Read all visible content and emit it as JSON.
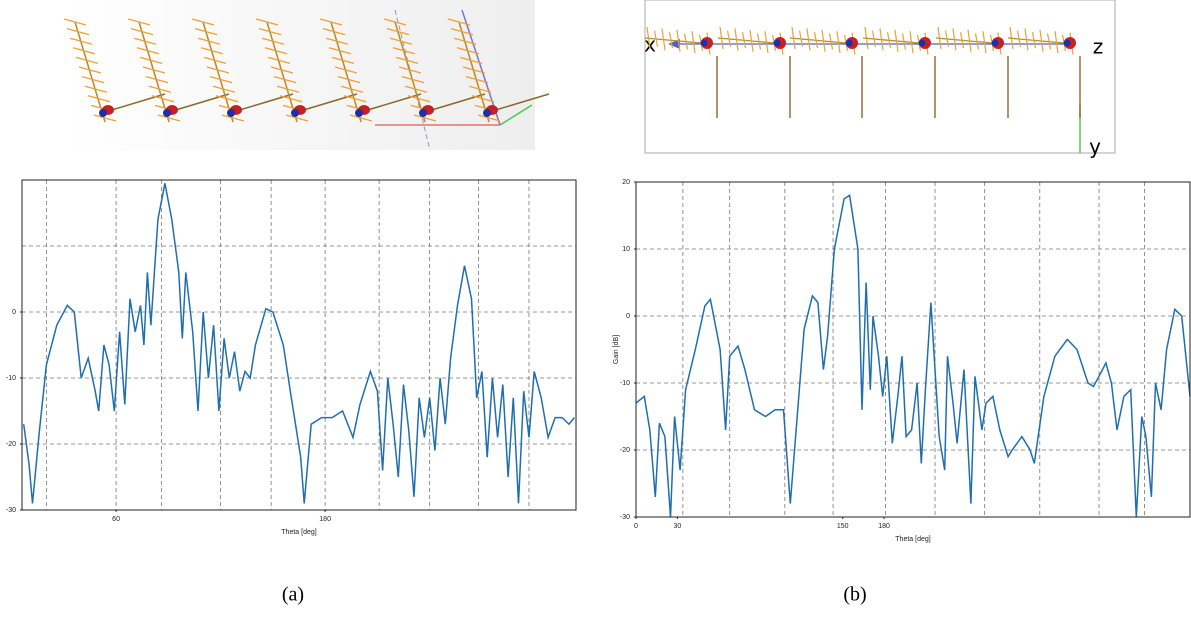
{
  "chart_data": [
    {
      "type": "line",
      "xlabel": "Theta [deg]",
      "xlim": [
        6,
        324
      ],
      "xticks": [
        60,
        180
      ],
      "xgrid": [
        20,
        60,
        86,
        120,
        149,
        180,
        211,
        240,
        268,
        297
      ],
      "ylim": [
        -30,
        20
      ],
      "yticks": [
        -30,
        -20,
        -10,
        0
      ],
      "ygrid": [
        -20,
        -10,
        0,
        10
      ],
      "x": [
        7,
        10,
        12,
        16,
        20,
        26,
        32,
        36,
        40,
        44,
        48,
        50,
        53,
        56,
        59,
        62,
        65,
        68,
        71,
        74,
        76,
        78,
        80,
        84,
        88,
        92,
        96,
        98,
        100,
        104,
        107,
        110,
        113,
        116,
        119,
        122,
        125,
        128,
        131,
        134,
        137,
        140,
        146,
        150,
        156,
        160,
        166,
        168,
        172,
        178,
        184,
        190,
        196,
        200,
        206,
        210,
        213,
        216,
        219,
        222,
        225,
        228,
        231,
        234,
        237,
        240,
        243,
        246,
        249,
        252,
        256,
        260,
        264,
        267,
        270,
        273,
        276,
        279,
        282,
        285,
        288,
        291,
        294,
        297,
        300,
        304,
        308,
        312,
        316,
        320,
        323
      ],
      "series": [
        {
          "color": "#1f6fb0",
          "values": [
            -17,
            -23,
            -29,
            -18,
            -8,
            -2,
            1,
            0,
            -10,
            -7,
            -12,
            -15,
            -5,
            -8,
            -15,
            -3,
            -14,
            2,
            -3,
            1,
            -5,
            6,
            -2,
            14,
            19.5,
            14,
            6,
            -4,
            6,
            -3,
            -15,
            0,
            -10,
            -2,
            -15,
            -4,
            -10,
            -6,
            -12,
            -9,
            -10,
            -5,
            0.5,
            0,
            -5,
            -12,
            -22,
            -29,
            -17,
            -16,
            -16,
            -15,
            -19,
            -14,
            -9,
            -12,
            -24,
            -10,
            -17,
            -25,
            -11,
            -18,
            -28,
            -13,
            -19,
            -13,
            -21,
            -10,
            -17,
            -7,
            1,
            7,
            2,
            -13,
            -9,
            -22,
            -10,
            -19,
            -11,
            -25,
            -13,
            -29,
            -12,
            -19,
            -9,
            -13,
            -19,
            -16,
            -16,
            -17,
            -16
          ]
        }
      ]
    },
    {
      "type": "line",
      "xlabel": "Theta [deg]",
      "ylabel": "Gain [dB]",
      "xlim": [
        0,
        402
      ],
      "xticks": [
        0,
        30,
        150,
        180
      ],
      "xgrid": [
        34,
        68,
        108,
        143,
        181,
        217,
        253,
        293,
        336,
        369
      ],
      "ylim": [
        -30,
        20
      ],
      "yticks": [
        -30,
        -20,
        -10,
        0,
        10,
        20
      ],
      "ygrid": [
        -20,
        -10,
        0,
        10
      ],
      "x": [
        0,
        6,
        10,
        14,
        17,
        21,
        25,
        28,
        32,
        36,
        43,
        50,
        54,
        61,
        65,
        68,
        74,
        79,
        86,
        94,
        101,
        107,
        112,
        117,
        122,
        128,
        132,
        136,
        139,
        144,
        151,
        155,
        161,
        164,
        167,
        170,
        172,
        176,
        179,
        182,
        186,
        190,
        193,
        196,
        200,
        204,
        207,
        210,
        214,
        217,
        220,
        224,
        226,
        230,
        233,
        238,
        243,
        246,
        251,
        254,
        259,
        264,
        270,
        273,
        280,
        286,
        289,
        296,
        304,
        313,
        320,
        328,
        332,
        336,
        341,
        345,
        349,
        354,
        359,
        363,
        367,
        370,
        374,
        377,
        381,
        385,
        391,
        396,
        402
      ],
      "series": [
        {
          "color": "#1f6fb0",
          "values": [
            -13,
            -12,
            -17,
            -27,
            -16,
            -18,
            -30,
            -15,
            -23,
            -11,
            -5,
            1.5,
            2.5,
            -5,
            -17,
            -6,
            -4.5,
            -8,
            -14,
            -15,
            -14,
            -14,
            -28,
            -15,
            -2,
            3,
            2,
            -8,
            -3,
            10,
            17.5,
            18,
            10,
            -14,
            5,
            -11,
            0,
            -6,
            -12,
            -6,
            -19,
            -12,
            -6,
            -18,
            -17,
            -10,
            -22,
            -11,
            2,
            -8,
            -18,
            -23,
            -6,
            -13,
            -19,
            -8,
            -28,
            -9,
            -17,
            -13,
            -12,
            -17,
            -21,
            -20,
            -18,
            -20,
            -22,
            -12,
            -6,
            -3.5,
            -5,
            -10,
            -10.5,
            -9,
            -7,
            -10,
            -17,
            -12,
            -11,
            -30,
            -15,
            -18,
            -27,
            -10,
            -14,
            -5,
            1,
            0,
            -12
          ]
        }
      ]
    }
  ],
  "diagram_labels": {
    "x": "x",
    "z": "z",
    "y": "y"
  },
  "captions": [
    "(a)",
    "(b)"
  ]
}
